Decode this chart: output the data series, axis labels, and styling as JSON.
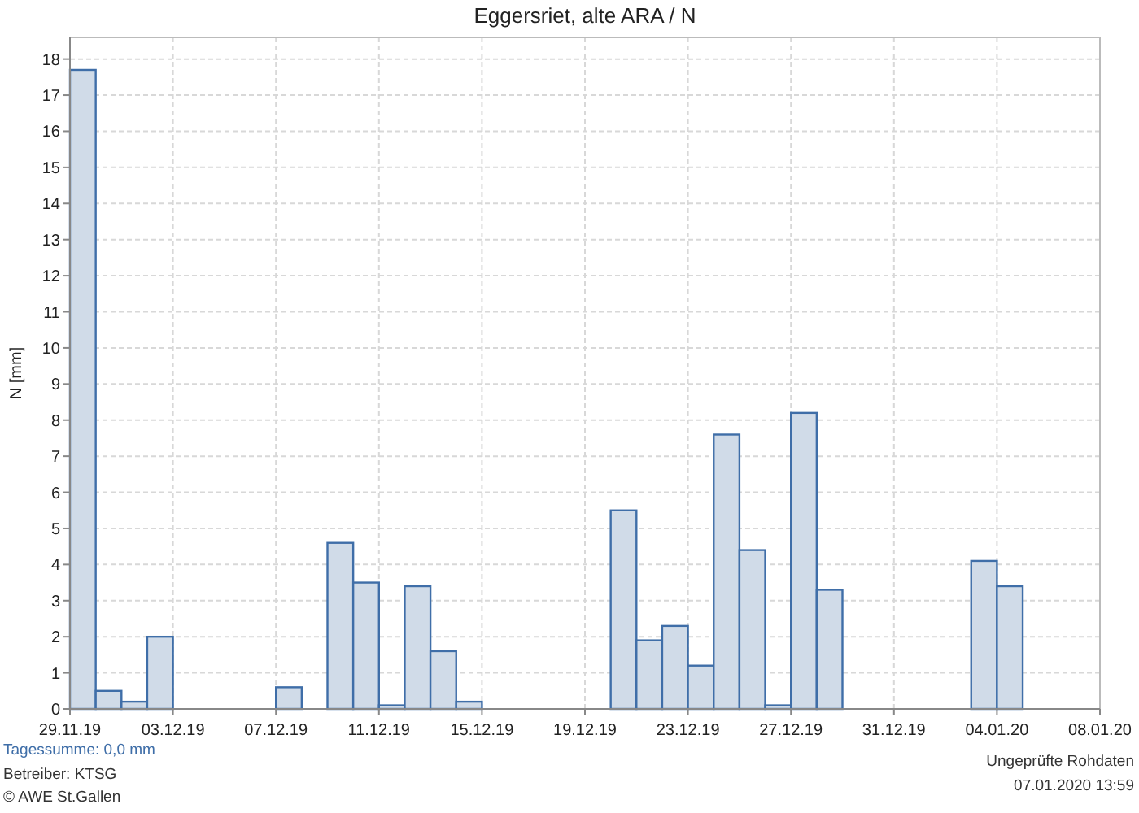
{
  "chart_data": {
    "type": "bar",
    "title": "Eggersriet, alte ARA / N",
    "ylabel": "N [mm]",
    "x": [
      "2019-11-29T12:00",
      "2019-11-30T12:00",
      "2019-12-01T12:00",
      "2019-12-02T12:00",
      "2019-12-07T12:00",
      "2019-12-09T12:00",
      "2019-12-10T12:00",
      "2019-12-11T12:00",
      "2019-12-12T12:00",
      "2019-12-13T12:00",
      "2019-12-14T12:00",
      "2019-12-20T12:00",
      "2019-12-21T12:00",
      "2019-12-22T12:00",
      "2019-12-23T12:00",
      "2019-12-24T12:00",
      "2019-12-25T12:00",
      "2019-12-26T12:00",
      "2019-12-27T12:00",
      "2019-12-28T12:00",
      "2020-01-03T12:00",
      "2020-01-04T12:00"
    ],
    "values": [
      17.7,
      0.5,
      0.2,
      2.0,
      0.6,
      4.6,
      3.5,
      0.1,
      3.4,
      1.6,
      0.2,
      5.5,
      1.9,
      2.3,
      1.2,
      7.6,
      4.4,
      0.1,
      8.2,
      3.3,
      4.1,
      3.4
    ],
    "color": "#d0dbe8",
    "xlim": [
      "2019-11-29",
      "2020-01-08"
    ],
    "xticks": [
      {
        "value": "2019-11-29",
        "label": "29.11.19"
      },
      {
        "value": "2019-12-03",
        "label": "03.12.19"
      },
      {
        "value": "2019-12-07",
        "label": "07.12.19"
      },
      {
        "value": "2019-12-11",
        "label": "11.12.19"
      },
      {
        "value": "2019-12-15",
        "label": "15.12.19"
      },
      {
        "value": "2019-12-19",
        "label": "19.12.19"
      },
      {
        "value": "2019-12-23",
        "label": "23.12.19"
      },
      {
        "value": "2019-12-27",
        "label": "27.12.19"
      },
      {
        "value": "2019-12-31",
        "label": "31.12.19"
      },
      {
        "value": "2020-01-04",
        "label": "04.01.20"
      },
      {
        "value": "2020-01-08",
        "label": "08.01.20"
      }
    ],
    "ylim": [
      0,
      18.6
    ],
    "yticks": [
      0,
      1,
      2,
      3,
      4,
      5,
      6,
      7,
      8,
      9,
      10,
      11,
      12,
      13,
      14,
      15,
      16,
      17,
      18
    ],
    "grid": true,
    "annotations": [
      "Tagessumme: 0,0 mm",
      "Betreiber: KTSG",
      "© AWE St.Gallen",
      "Ungeprüfte Rohdaten",
      "07.01.2020 13:59"
    ]
  }
}
